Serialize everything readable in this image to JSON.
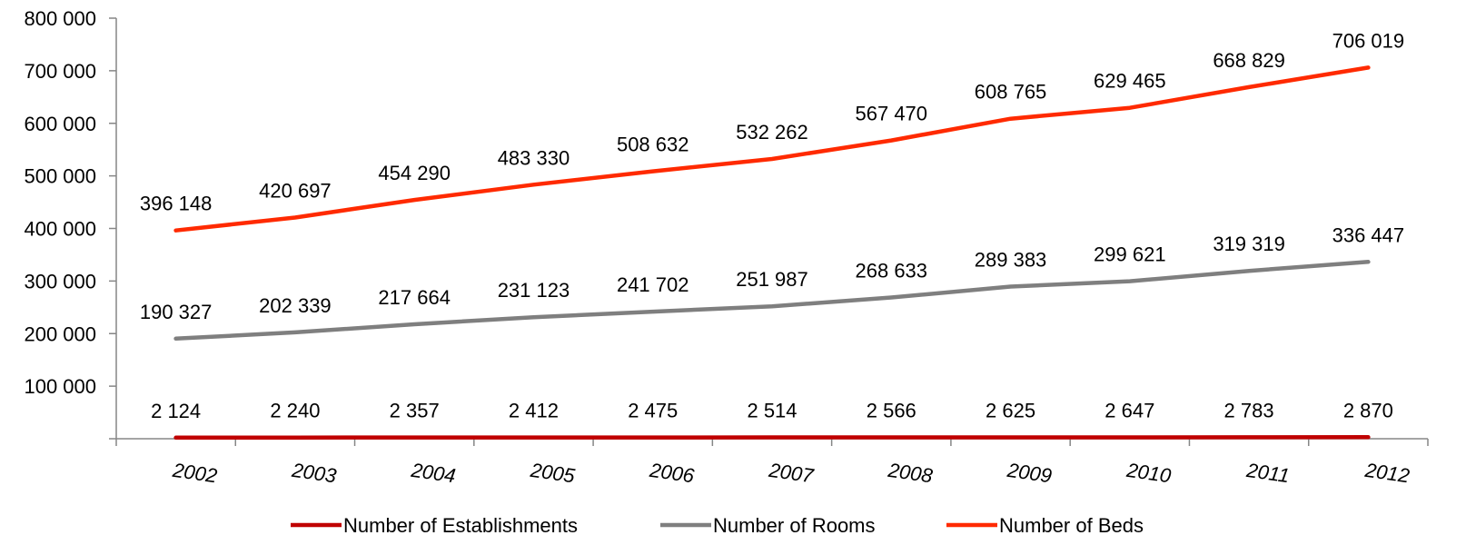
{
  "chart_data": {
    "type": "line",
    "title": "",
    "xlabel": "",
    "ylabel": "",
    "categories": [
      "2002",
      "2003",
      "2004",
      "2005",
      "2006",
      "2007",
      "2008",
      "2009",
      "2010",
      "2011",
      "2012"
    ],
    "ylim": [
      0,
      800000
    ],
    "yticks": [
      0,
      100000,
      200000,
      300000,
      400000,
      500000,
      600000,
      700000,
      800000
    ],
    "ytick_labels": [
      "",
      "100 000",
      "200 000",
      "300 000",
      "400 000",
      "500 000",
      "600 000",
      "700 000",
      "800 000"
    ],
    "grid": false,
    "legend_position": "bottom",
    "series": [
      {
        "name": "Number of Establishments",
        "color": "#C00000",
        "values": [
          2124,
          2240,
          2357,
          2412,
          2475,
          2514,
          2566,
          2625,
          2647,
          2783,
          2870
        ],
        "labels": [
          "2 124",
          "2 240",
          "2 357",
          "2 412",
          "2 475",
          "2 514",
          "2 566",
          "2 625",
          "2 647",
          "2 783",
          "2 870"
        ]
      },
      {
        "name": "Number of Rooms",
        "color": "#7F7F7F",
        "values": [
          190327,
          202339,
          217664,
          231123,
          241702,
          251987,
          268633,
          289383,
          299621,
          319319,
          336447
        ],
        "labels": [
          "190 327",
          "202 339",
          "217 664",
          "231 123",
          "241 702",
          "251 987",
          "268 633",
          "289 383",
          "299 621",
          "319 319",
          "336 447"
        ]
      },
      {
        "name": "Number of Beds",
        "color": "#FF2A00",
        "values": [
          396148,
          420697,
          454290,
          483330,
          508632,
          532262,
          567470,
          608765,
          629465,
          668829,
          706019
        ],
        "labels": [
          "396 148",
          "420 697",
          "454 290",
          "483 330",
          "508 632",
          "532 262",
          "567 470",
          "608 765",
          "629 465",
          "668 829",
          "706 019"
        ]
      }
    ]
  }
}
